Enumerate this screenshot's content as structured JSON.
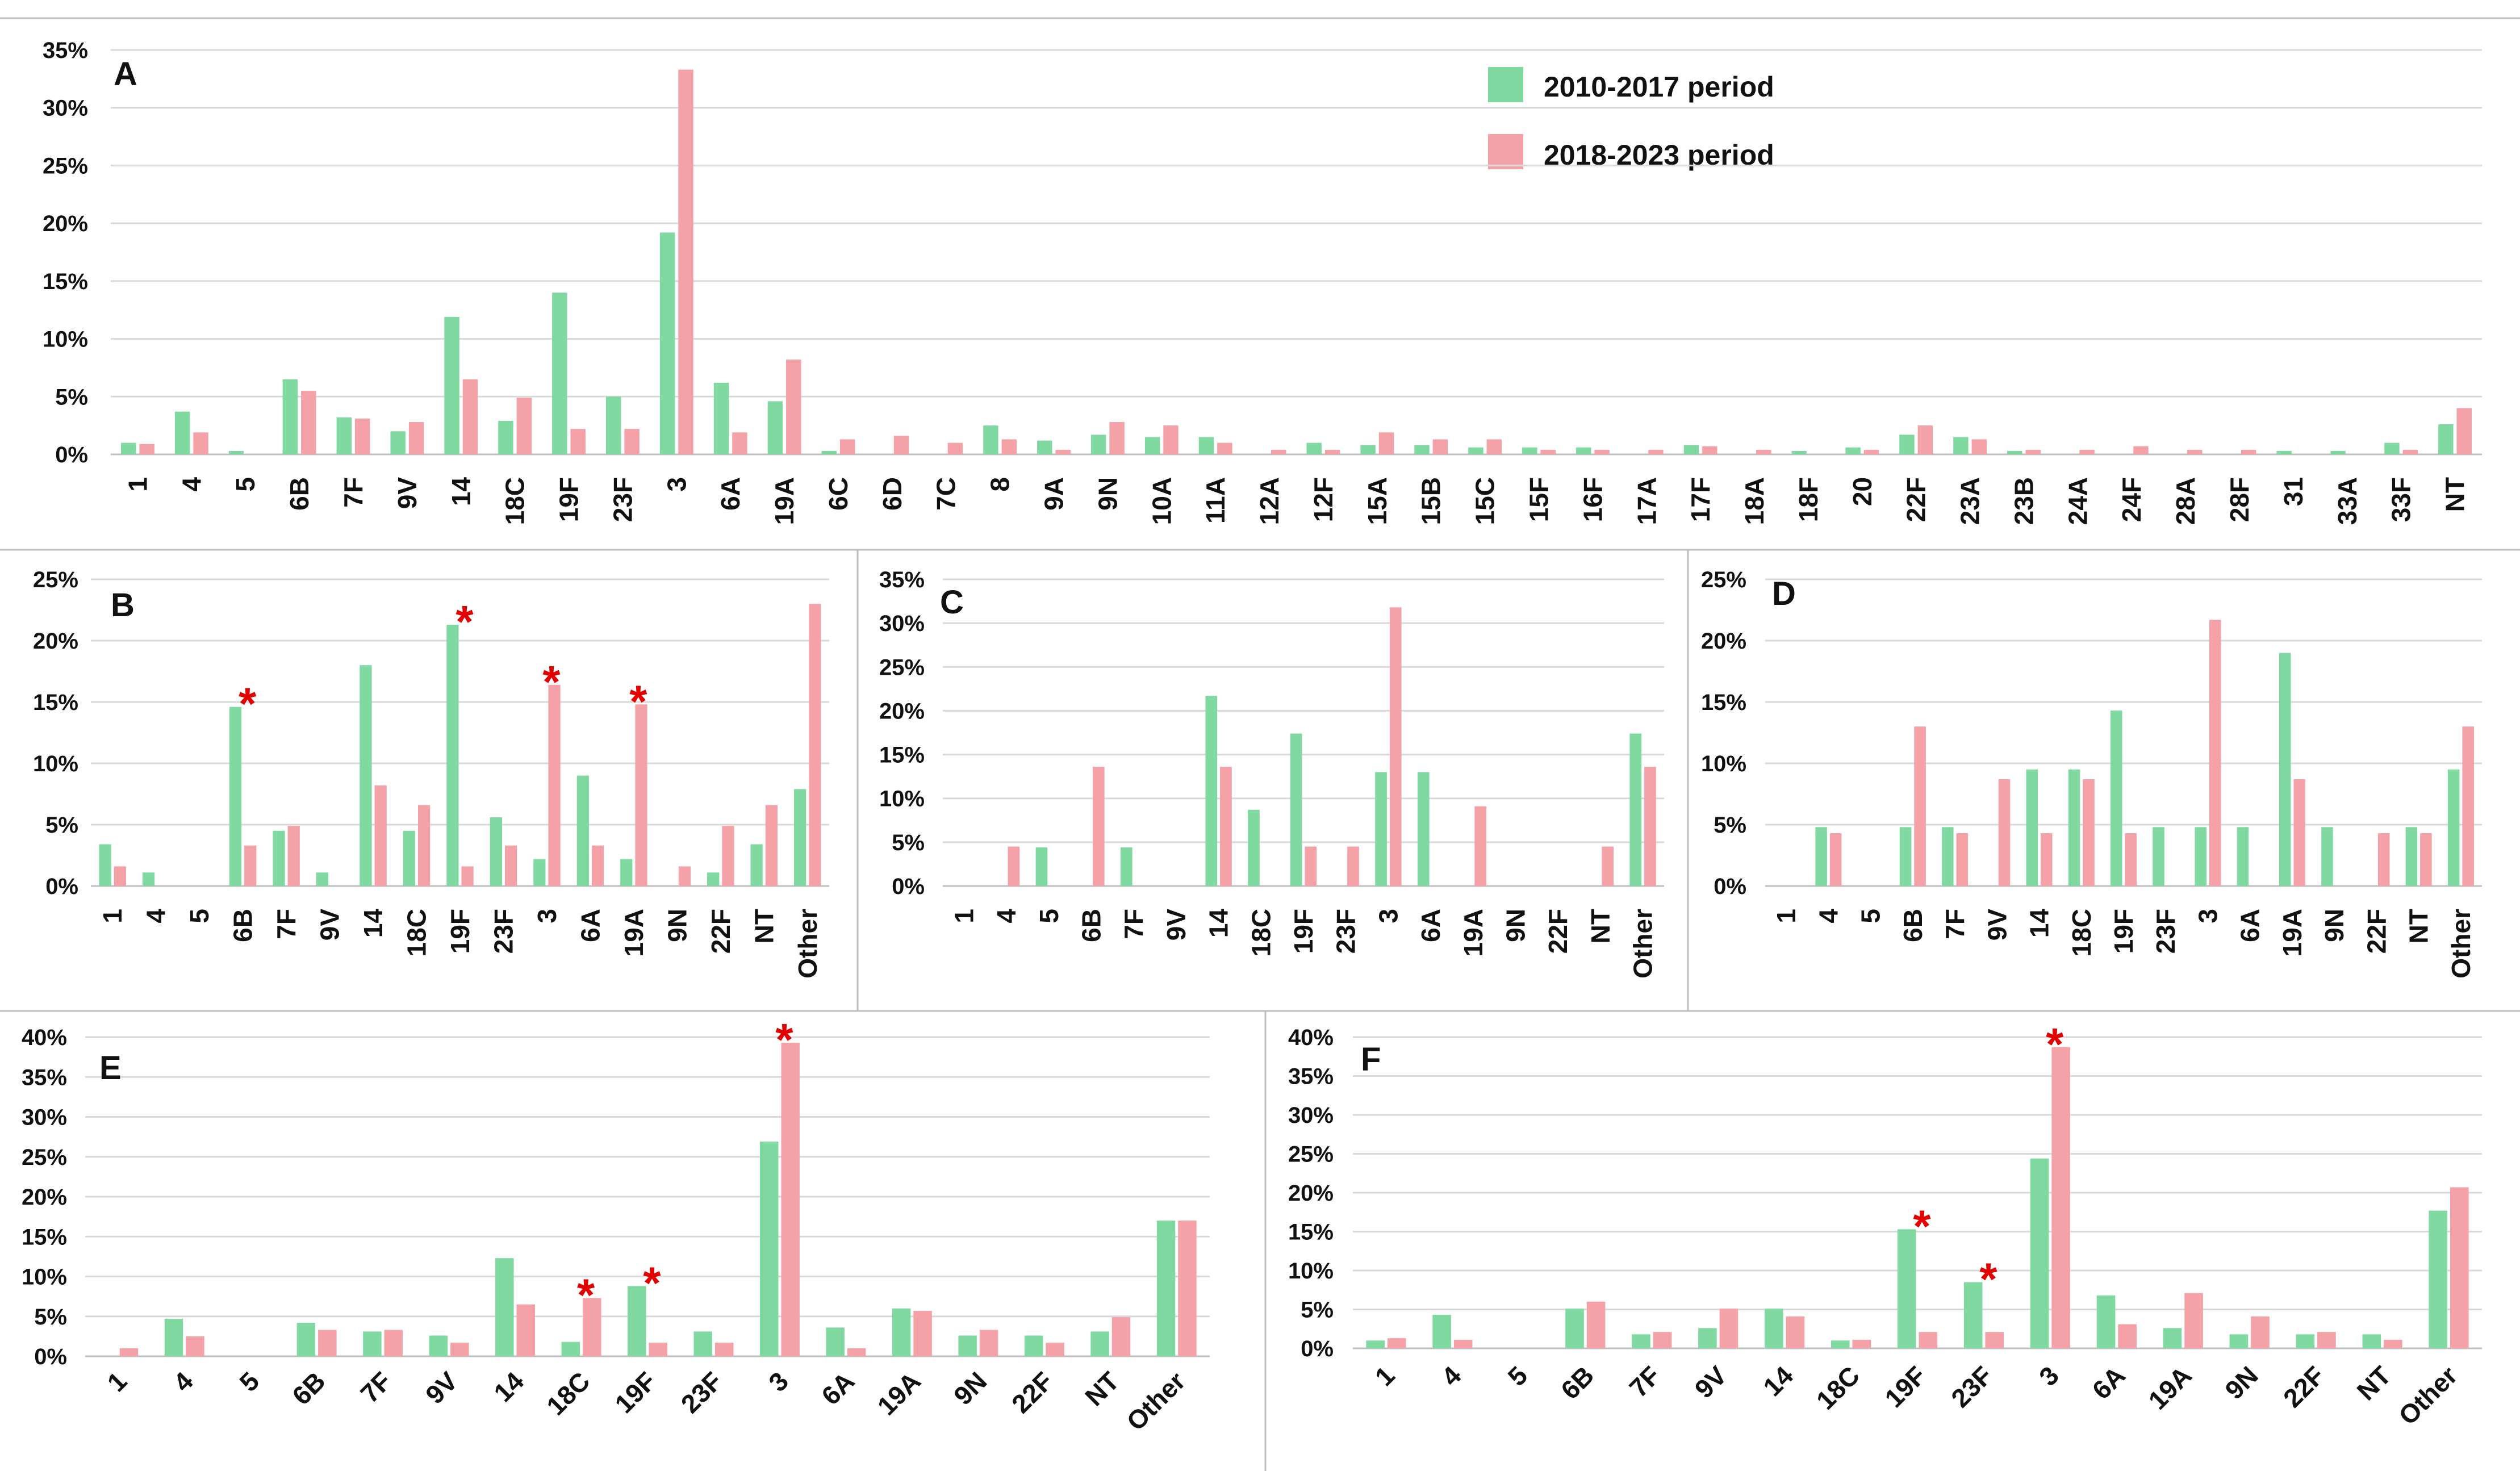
{
  "colors": {
    "period1": "#7fd9a0",
    "period2": "#f4a1a7",
    "star": "#e30000",
    "grid": "#d9d9d9"
  },
  "legend": {
    "period1": "2010-2017 period",
    "period2": "2018-2023 period"
  },
  "chart_data": [
    {
      "panel": "A",
      "type": "bar",
      "categories": [
        "1",
        "4",
        "5",
        "6B",
        "7F",
        "9V",
        "14",
        "18C",
        "19F",
        "23F",
        "3",
        "6A",
        "19A",
        "6C",
        "6D",
        "7C",
        "8",
        "9A",
        "9N",
        "10A",
        "11A",
        "12A",
        "12F",
        "15A",
        "15B",
        "15C",
        "15F",
        "16F",
        "17A",
        "17F",
        "18A",
        "18F",
        "20",
        "22F",
        "23A",
        "23B",
        "24A",
        "24F",
        "28A",
        "28F",
        "31",
        "33A",
        "33F",
        "NT"
      ],
      "series": [
        {
          "name": "2010-2017 period",
          "values": [
            1.0,
            3.7,
            0.3,
            6.5,
            3.2,
            2.0,
            11.9,
            2.9,
            14.0,
            5.0,
            19.2,
            6.2,
            4.6,
            0.3,
            0,
            0,
            2.5,
            1.2,
            1.7,
            1.5,
            1.5,
            0,
            1.0,
            0.8,
            0.8,
            0.6,
            0.6,
            0.6,
            0,
            0.8,
            0,
            0.3,
            0.6,
            1.7,
            1.5,
            0.3,
            0,
            0,
            0,
            0,
            0.3,
            0.3,
            1.0,
            2.6
          ]
        },
        {
          "name": "2018-2023 period",
          "values": [
            0.9,
            1.9,
            0,
            5.5,
            3.1,
            2.8,
            6.5,
            4.9,
            2.2,
            2.2,
            33.3,
            1.9,
            8.2,
            1.3,
            1.6,
            1.0,
            1.3,
            0.4,
            2.8,
            2.5,
            1.0,
            0.4,
            0.4,
            1.9,
            1.3,
            1.3,
            0.4,
            0.4,
            0.4,
            0.7,
            0.4,
            0,
            0.4,
            2.5,
            1.3,
            0.4,
            0.4,
            0.7,
            0.4,
            0.4,
            0,
            0,
            0.4,
            4.0
          ]
        }
      ],
      "yticks": [
        "0%",
        "5%",
        "10%",
        "15%",
        "20%",
        "25%",
        "30%",
        "35%"
      ],
      "ylim": [
        0,
        35
      ],
      "stars": []
    },
    {
      "panel": "B",
      "type": "bar",
      "categories": [
        "1",
        "4",
        "5",
        "6B",
        "7F",
        "9V",
        "14",
        "18C",
        "19F",
        "23F",
        "3",
        "6A",
        "19A",
        "9N",
        "22F",
        "NT",
        "Other"
      ],
      "series": [
        {
          "name": "2010-2017 period",
          "values": [
            3.4,
            1.1,
            0,
            14.6,
            4.5,
            1.1,
            18.0,
            4.5,
            21.3,
            5.6,
            2.2,
            9.0,
            2.2,
            0,
            1.1,
            3.4,
            7.9
          ]
        },
        {
          "name": "2018-2023 period",
          "values": [
            1.6,
            0,
            0,
            3.3,
            4.9,
            0,
            8.2,
            6.6,
            1.6,
            3.3,
            16.4,
            3.3,
            14.8,
            1.6,
            4.9,
            6.6,
            23.0
          ]
        }
      ],
      "yticks": [
        "0%",
        "5%",
        "10%",
        "15%",
        "20%",
        "25%"
      ],
      "ylim": [
        0,
        25
      ],
      "stars": [
        {
          "category": "6B",
          "star": "*"
        },
        {
          "category": "19F",
          "star": "*"
        },
        {
          "category": "3",
          "star": "*"
        },
        {
          "category": "19A",
          "star": "*"
        }
      ]
    },
    {
      "panel": "C",
      "type": "bar",
      "categories": [
        "1",
        "4",
        "5",
        "6B",
        "7F",
        "9V",
        "14",
        "18C",
        "19F",
        "23F",
        "3",
        "6A",
        "19A",
        "9N",
        "22F",
        "NT",
        "Other"
      ],
      "series": [
        {
          "name": "2010-2017 period",
          "values": [
            0,
            0,
            4.4,
            0,
            4.4,
            0,
            21.7,
            8.7,
            17.4,
            0,
            13.0,
            13.0,
            0,
            0,
            0,
            0,
            17.4
          ]
        },
        {
          "name": "2018-2023 period",
          "values": [
            0,
            4.5,
            0,
            13.6,
            0,
            0,
            13.6,
            0,
            4.5,
            4.5,
            31.8,
            0,
            9.1,
            0,
            0,
            4.5,
            13.6
          ]
        }
      ],
      "yticks": [
        "0%",
        "5%",
        "10%",
        "15%",
        "20%",
        "25%",
        "30%",
        "35%"
      ],
      "ylim": [
        0,
        35
      ],
      "stars": []
    },
    {
      "panel": "D",
      "type": "bar",
      "categories": [
        "1",
        "4",
        "5",
        "6B",
        "7F",
        "9V",
        "14",
        "18C",
        "19F",
        "23F",
        "3",
        "6A",
        "19A",
        "9N",
        "22F",
        "NT",
        "Other"
      ],
      "series": [
        {
          "name": "2010-2017 period",
          "values": [
            0,
            4.8,
            0,
            4.8,
            4.8,
            0,
            9.5,
            9.5,
            14.3,
            4.8,
            4.8,
            4.8,
            19.0,
            4.8,
            0,
            4.8,
            9.5
          ]
        },
        {
          "name": "2018-2023 period",
          "values": [
            0,
            4.3,
            0,
            13.0,
            4.3,
            8.7,
            4.3,
            8.7,
            4.3,
            0,
            21.7,
            0,
            8.7,
            0,
            4.3,
            4.3,
            13.0
          ]
        }
      ],
      "yticks": [
        "0%",
        "5%",
        "10%",
        "15%",
        "20%",
        "25%"
      ],
      "ylim": [
        0,
        25
      ],
      "stars": []
    },
    {
      "panel": "E",
      "type": "bar",
      "categories": [
        "1",
        "4",
        "5",
        "6B",
        "7F",
        "9V",
        "14",
        "18C",
        "19F",
        "23F",
        "3",
        "6A",
        "19A",
        "9N",
        "22F",
        "NT",
        "Other"
      ],
      "series": [
        {
          "name": "2010-2017 period",
          "values": [
            0,
            4.7,
            0,
            4.2,
            3.1,
            2.6,
            12.3,
            1.8,
            8.8,
            3.1,
            26.9,
            3.6,
            6.0,
            2.6,
            2.6,
            3.1,
            17.0
          ]
        },
        {
          "name": "2018-2023 period",
          "values": [
            1.0,
            2.5,
            0,
            3.3,
            3.3,
            1.7,
            6.5,
            7.3,
            1.7,
            1.7,
            39.3,
            1.0,
            5.7,
            3.3,
            1.7,
            4.9,
            17.0
          ]
        }
      ],
      "yticks": [
        "0%",
        "5%",
        "10%",
        "15%",
        "20%",
        "25%",
        "30%",
        "35%",
        "40%"
      ],
      "ylim": [
        0,
        40
      ],
      "stars": [
        {
          "category": "18C",
          "star": "*"
        },
        {
          "category": "19F",
          "star": "*"
        },
        {
          "category": "3",
          "star": "*"
        }
      ]
    },
    {
      "panel": "F",
      "type": "bar",
      "categories": [
        "1",
        "4",
        "5",
        "6B",
        "7F",
        "9V",
        "14",
        "18C",
        "19F",
        "23F",
        "3",
        "6A",
        "19A",
        "9N",
        "22F",
        "NT",
        "Other"
      ],
      "series": [
        {
          "name": "2010-2017 period",
          "values": [
            1.0,
            4.3,
            0,
            5.1,
            1.8,
            2.6,
            5.1,
            1.0,
            15.3,
            8.5,
            24.4,
            6.8,
            2.6,
            1.8,
            1.8,
            1.8,
            17.7
          ]
        },
        {
          "name": "2018-2023 period",
          "values": [
            1.3,
            1.1,
            0,
            6.0,
            2.1,
            5.1,
            4.1,
            1.1,
            2.1,
            2.1,
            38.7,
            3.1,
            7.1,
            4.1,
            2.1,
            1.1,
            20.7
          ]
        }
      ],
      "yticks": [
        "0%",
        "5%",
        "10%",
        "15%",
        "20%",
        "25%",
        "30%",
        "35%",
        "40%"
      ],
      "ylim": [
        0,
        40
      ],
      "stars": [
        {
          "category": "19F",
          "star": "*"
        },
        {
          "category": "23F",
          "star": "*"
        },
        {
          "category": "3",
          "star": "*"
        }
      ]
    }
  ]
}
